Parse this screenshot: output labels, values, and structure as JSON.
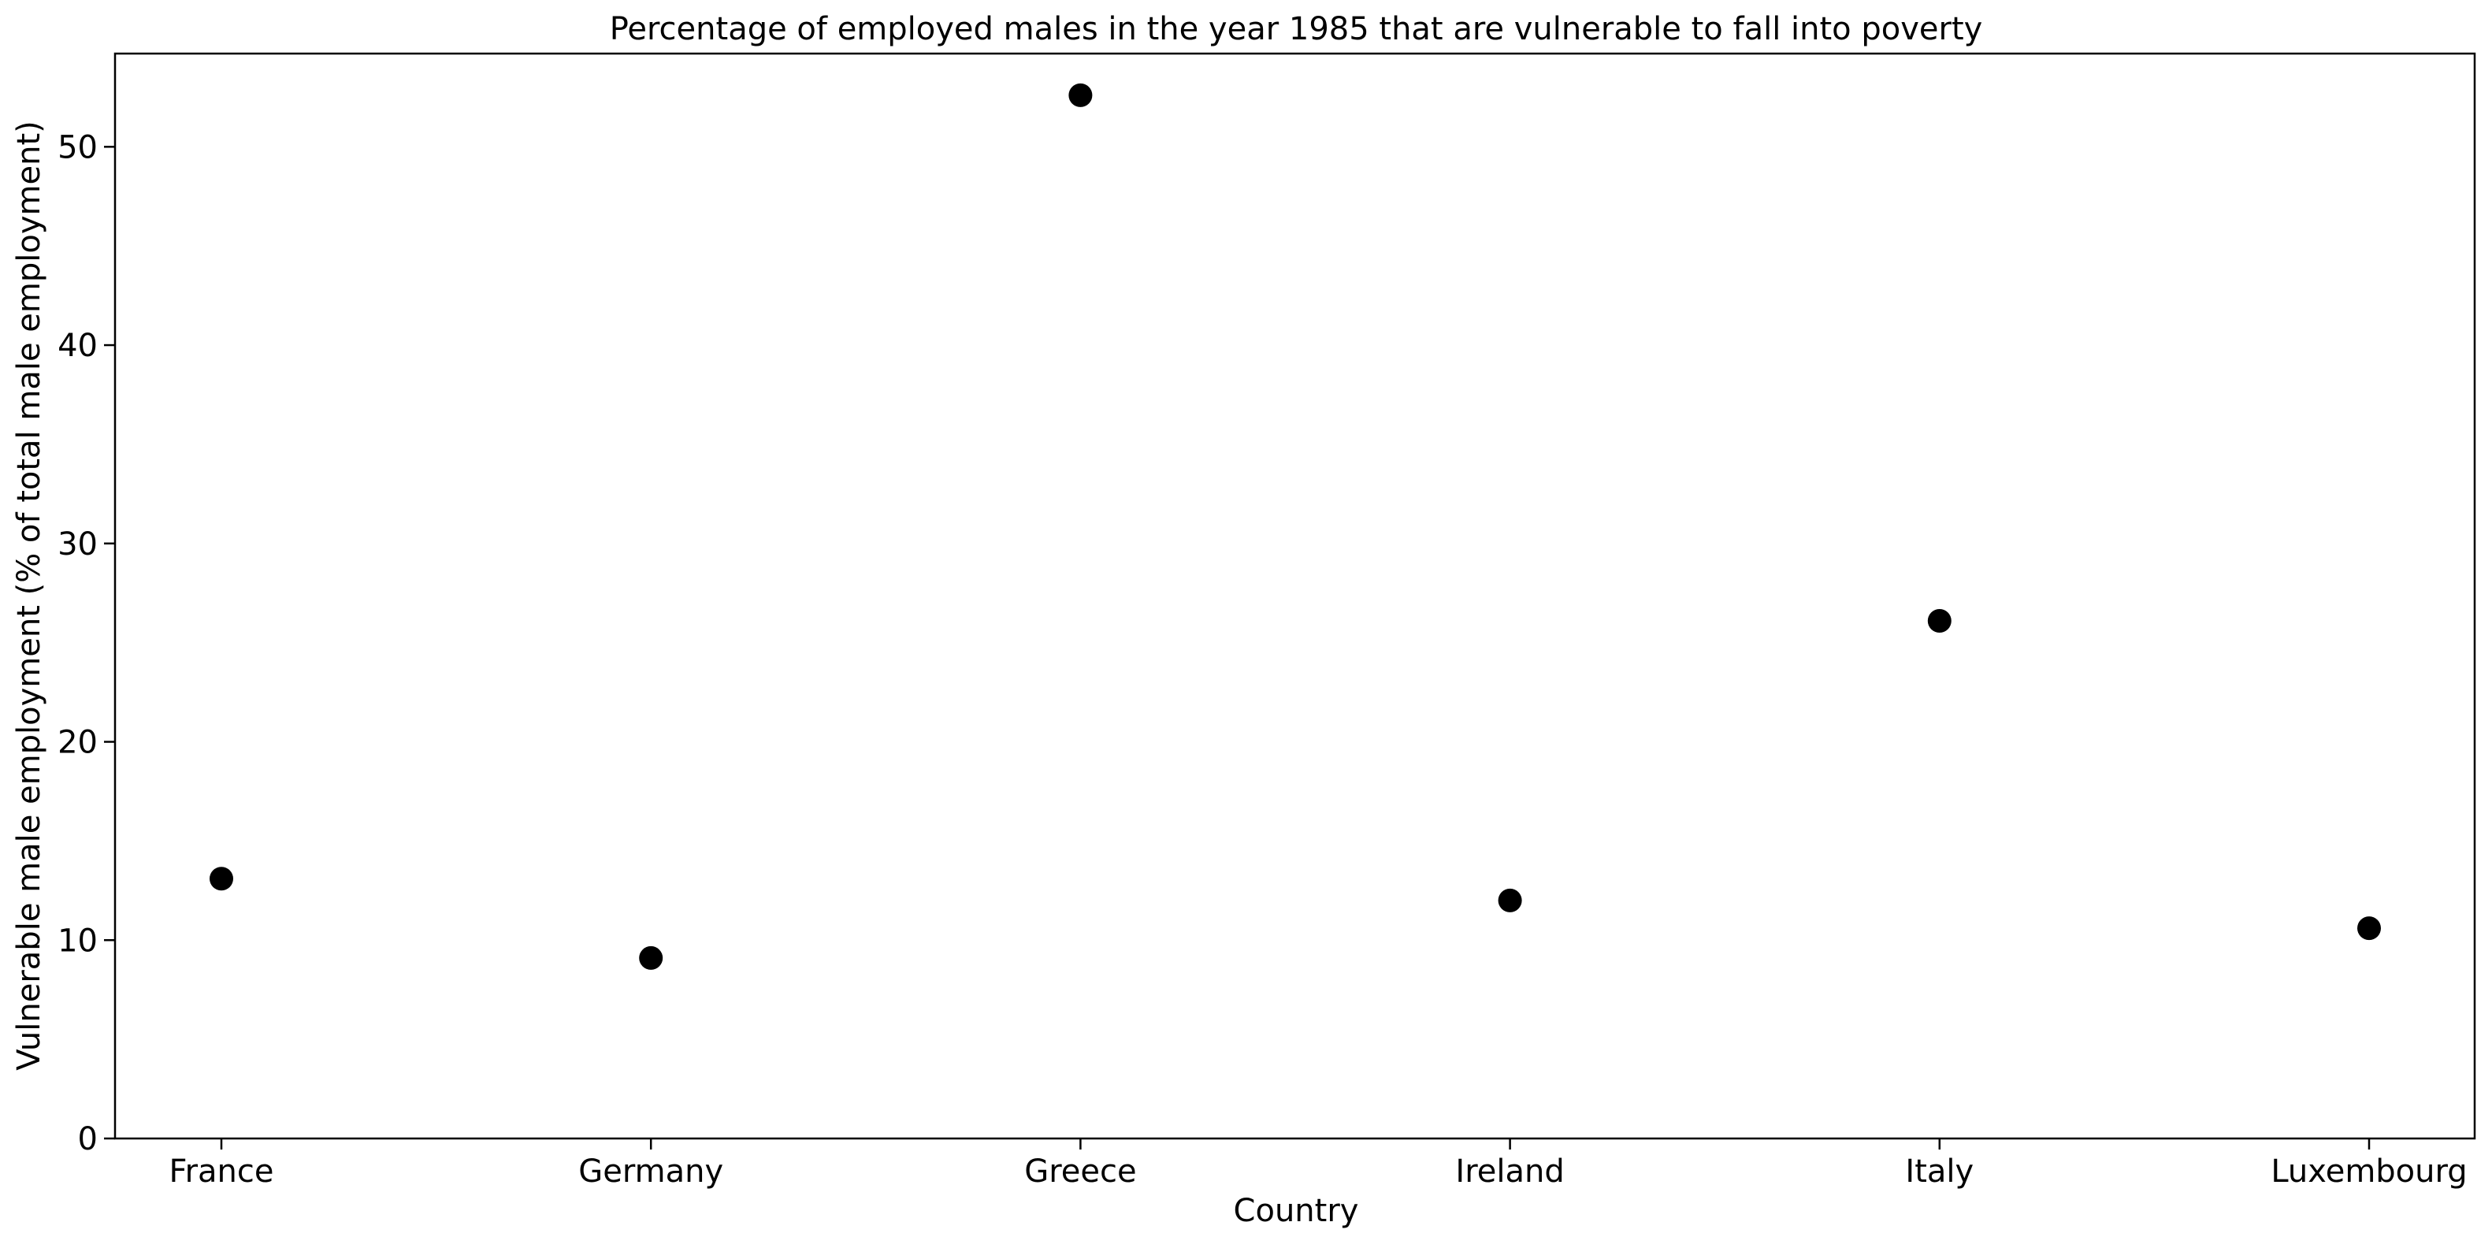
{
  "colors": {
    "marker": "#000000",
    "axis": "#000000",
    "background": "#ffffff"
  },
  "chart_data": {
    "type": "scatter",
    "title": "Percentage of employed males in the year 1985 that are vulnerable to fall into poverty",
    "xlabel": "Country",
    "ylabel": "Vulnerable male employment (% of total male employment)",
    "categories": [
      "France",
      "Germany",
      "Greece",
      "Ireland",
      "Italy",
      "Luxembourg"
    ],
    "values": [
      13.1,
      9.1,
      52.6,
      12.0,
      26.1,
      10.6
    ],
    "ylim": [
      0,
      54.7
    ],
    "yticks": [
      0,
      10,
      20,
      30,
      40,
      50
    ],
    "grid": false,
    "legend": "none"
  }
}
